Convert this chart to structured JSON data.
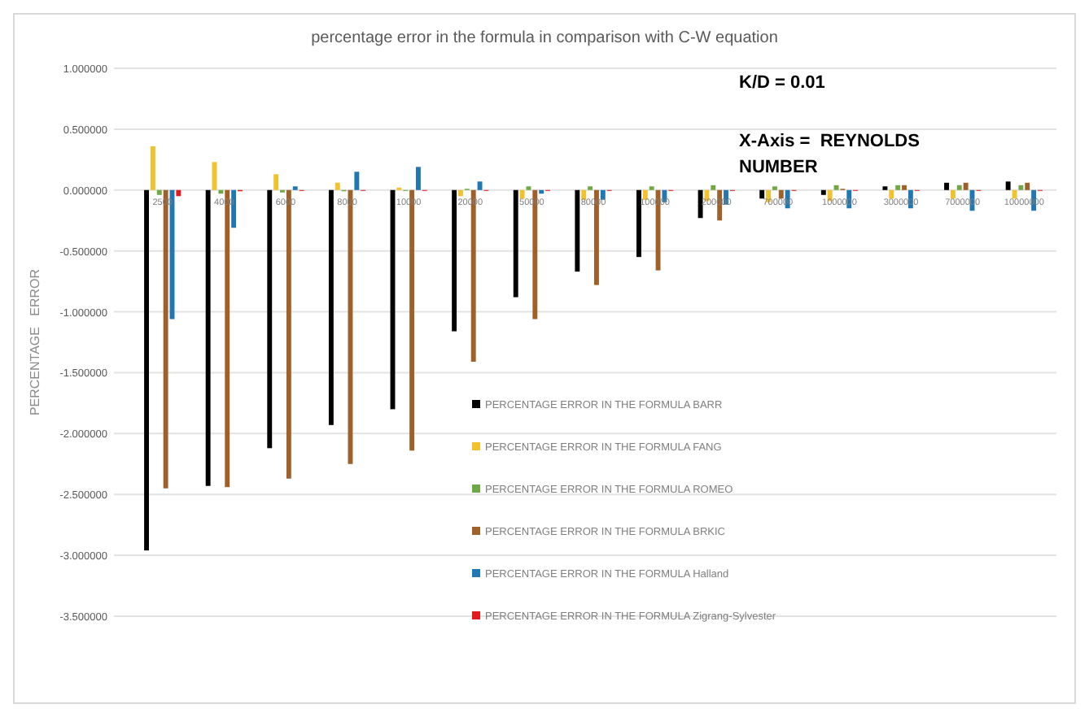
{
  "chart_data": {
    "type": "bar",
    "title": "percentage error in the formula in comparison with C-W equation",
    "ylabel": "PERCENTAGE   ERROR",
    "annotations": [
      "K/D = 0.01",
      "X-Axis =  REYNOLDS NUMBER"
    ],
    "categories": [
      "2500",
      "4000",
      "6000",
      "8000",
      "10000",
      "20000",
      "50000",
      "80000",
      "100000",
      "200000",
      "700000",
      "1000000",
      "3000000",
      "7000000",
      "10000000"
    ],
    "ylim": [
      -3.5,
      1
    ],
    "yticks": [
      {
        "value": 1,
        "label": "1.000000"
      },
      {
        "value": 0.5,
        "label": "0.500000"
      },
      {
        "value": 0,
        "label": "0.000000"
      },
      {
        "value": -0.5,
        "label": "-0.500000"
      },
      {
        "value": -1,
        "label": "-1.000000"
      },
      {
        "value": -1.5,
        "label": "-1.500000"
      },
      {
        "value": -2,
        "label": "-2.000000"
      },
      {
        "value": -2.5,
        "label": "-2.500000"
      },
      {
        "value": -3,
        "label": "-3.000000"
      },
      {
        "value": -3.5,
        "label": "-3.500000"
      }
    ],
    "grid": "y",
    "legend": "bottom",
    "series": [
      {
        "name": "PERCENTAGE ERROR IN THE FORMULA BARR",
        "color": "#000000",
        "values": [
          -2.96,
          -2.43,
          -2.12,
          -1.93,
          -1.8,
          -1.16,
          -0.88,
          -0.67,
          -0.55,
          -0.23,
          -0.07,
          -0.04,
          0.03,
          0.06,
          0.07
        ]
      },
      {
        "name": "PERCENTAGE ERROR IN THE FORMULA FANG",
        "color": "#f2c12e",
        "values": [
          0.36,
          0.23,
          0.13,
          0.06,
          0.02,
          -0.05,
          -0.07,
          -0.08,
          -0.08,
          -0.09,
          -0.1,
          -0.09,
          -0.07,
          -0.07,
          -0.07
        ]
      },
      {
        "name": "PERCENTAGE ERROR IN THE FORMULA ROMEO",
        "color": "#70a845",
        "values": [
          -0.04,
          -0.03,
          -0.02,
          -0.01,
          0,
          0.01,
          0.03,
          0.03,
          0.03,
          0.04,
          0.03,
          0.04,
          0.04,
          0.04,
          0.04
        ]
      },
      {
        "name": "PERCENTAGE ERROR IN THE FORMULA BRKIC",
        "color": "#a0602a",
        "values": [
          -2.45,
          -2.44,
          -2.37,
          -2.25,
          -2.14,
          -1.41,
          -1.06,
          -0.78,
          -0.66,
          -0.25,
          -0.07,
          0.01,
          0.04,
          0.06,
          0.06
        ]
      },
      {
        "name": "PERCENTAGE ERROR IN THE FORMULA Halland",
        "color": "#1f77b4",
        "values": [
          -1.06,
          -0.31,
          0.03,
          0.15,
          0.19,
          0.07,
          -0.03,
          -0.08,
          -0.1,
          -0.12,
          -0.15,
          -0.15,
          -0.15,
          -0.17,
          -0.17
        ]
      },
      {
        "name": "PERCENTAGE ERROR IN THE FORMULA Zigrang-Sylvester",
        "color": "#e31a1c",
        "values": [
          -0.05,
          -0.01,
          0,
          0,
          0,
          0,
          0,
          0,
          0,
          0,
          0,
          0,
          0,
          0,
          0
        ]
      }
    ]
  }
}
